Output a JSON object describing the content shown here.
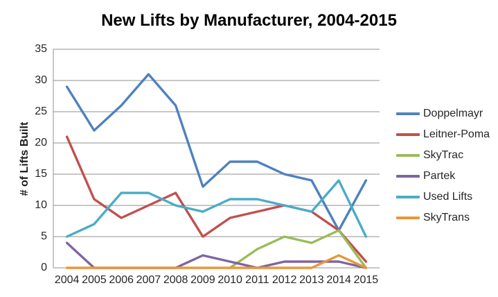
{
  "chart": {
    "title": "New Lifts by Manufacturer, 2004-2015",
    "ylabel": "# of Lifts Built"
  },
  "chart_data": {
    "type": "line",
    "title": "New Lifts by Manufacturer, 2004-2015",
    "xlabel": "",
    "ylabel": "# of Lifts Built",
    "categories": [
      "2004",
      "2005",
      "2006",
      "2007",
      "2008",
      "2009",
      "2010",
      "2011",
      "2012",
      "2013",
      "2014",
      "2015"
    ],
    "series": [
      {
        "name": "Doppelmayr",
        "color": "#4F81BD",
        "values": [
          29,
          22,
          26,
          31,
          26,
          13,
          17,
          17,
          15,
          14,
          6,
          14
        ]
      },
      {
        "name": "Leitner-Poma",
        "color": "#C0504D",
        "values": [
          21,
          11,
          8,
          10,
          12,
          5,
          8,
          9,
          10,
          9,
          6,
          1
        ]
      },
      {
        "name": "SkyTrac",
        "color": "#9BBB59",
        "values": [
          null,
          null,
          null,
          null,
          null,
          null,
          0,
          3,
          5,
          4,
          6,
          0
        ]
      },
      {
        "name": "Partek",
        "color": "#8064A2",
        "values": [
          4,
          0,
          0,
          0,
          0,
          2,
          1,
          0,
          1,
          1,
          1,
          0
        ]
      },
      {
        "name": "Used Lifts",
        "color": "#4BACC6",
        "values": [
          5,
          7,
          12,
          12,
          10,
          9,
          11,
          11,
          10,
          9,
          14,
          5
        ]
      },
      {
        "name": "SkyTrans",
        "color": "#E8973A",
        "values": [
          0,
          0,
          0,
          0,
          0,
          0,
          0,
          0,
          0,
          0,
          2,
          0
        ]
      }
    ],
    "ylim": [
      0,
      35
    ],
    "ytick_step": 5,
    "grid": true,
    "gridline_color": "#8F8F8F",
    "legend_position": "right"
  }
}
